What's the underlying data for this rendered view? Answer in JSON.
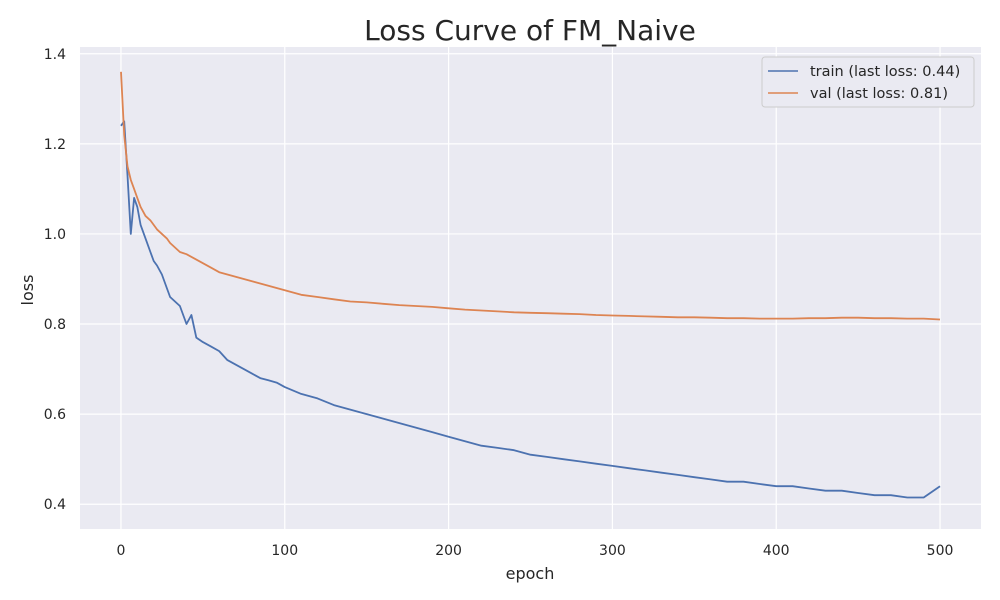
{
  "chart_data": {
    "type": "line",
    "title": "Loss Curve of FM_Naive",
    "xlabel": "epoch",
    "ylabel": "loss",
    "xlim": [
      -25,
      525
    ],
    "ylim": [
      0.345,
      1.415
    ],
    "xticks": [
      0,
      100,
      200,
      300,
      400,
      500
    ],
    "yticks": [
      0.4,
      0.6,
      0.8,
      1.0,
      1.2,
      1.4
    ],
    "xtick_labels": [
      "0",
      "100",
      "200",
      "300",
      "400",
      "500"
    ],
    "ytick_labels": [
      "0.4",
      "0.6",
      "0.8",
      "1.0",
      "1.2",
      "1.4"
    ],
    "grid": true,
    "legend_position": "top-right",
    "background": "#eaeaf2",
    "series": [
      {
        "name": "train (last loss: 0.44)",
        "color": "#4c72b0",
        "x": [
          0,
          2,
          4,
          6,
          8,
          10,
          12,
          15,
          18,
          20,
          22,
          25,
          28,
          30,
          33,
          36,
          40,
          43,
          46,
          50,
          55,
          60,
          65,
          70,
          75,
          80,
          85,
          90,
          95,
          100,
          110,
          120,
          130,
          140,
          150,
          160,
          170,
          180,
          190,
          200,
          210,
          220,
          230,
          240,
          250,
          260,
          270,
          280,
          290,
          300,
          310,
          320,
          330,
          340,
          350,
          360,
          370,
          380,
          390,
          400,
          410,
          420,
          430,
          440,
          450,
          460,
          470,
          480,
          490,
          500
        ],
        "y": [
          1.24,
          1.25,
          1.13,
          1.0,
          1.08,
          1.06,
          1.02,
          0.99,
          0.96,
          0.94,
          0.93,
          0.91,
          0.88,
          0.86,
          0.85,
          0.84,
          0.8,
          0.82,
          0.77,
          0.76,
          0.75,
          0.74,
          0.72,
          0.71,
          0.7,
          0.69,
          0.68,
          0.675,
          0.67,
          0.66,
          0.645,
          0.635,
          0.62,
          0.61,
          0.6,
          0.59,
          0.58,
          0.57,
          0.56,
          0.55,
          0.54,
          0.53,
          0.525,
          0.52,
          0.51,
          0.505,
          0.5,
          0.495,
          0.49,
          0.485,
          0.48,
          0.475,
          0.47,
          0.465,
          0.46,
          0.455,
          0.45,
          0.45,
          0.445,
          0.44,
          0.44,
          0.435,
          0.43,
          0.43,
          0.425,
          0.42,
          0.42,
          0.415,
          0.415,
          0.44
        ]
      },
      {
        "name": "val (last loss: 0.81)",
        "color": "#dd8452",
        "x": [
          0,
          2,
          4,
          6,
          8,
          10,
          12,
          15,
          18,
          20,
          22,
          25,
          28,
          30,
          33,
          36,
          40,
          45,
          50,
          55,
          60,
          65,
          70,
          75,
          80,
          85,
          90,
          95,
          100,
          110,
          120,
          130,
          140,
          150,
          160,
          170,
          180,
          190,
          200,
          210,
          220,
          230,
          240,
          250,
          260,
          270,
          280,
          290,
          300,
          310,
          320,
          330,
          340,
          350,
          360,
          370,
          380,
          390,
          400,
          410,
          420,
          430,
          440,
          450,
          460,
          470,
          480,
          490,
          500
        ],
        "y": [
          1.36,
          1.22,
          1.15,
          1.12,
          1.1,
          1.08,
          1.06,
          1.04,
          1.03,
          1.02,
          1.01,
          1.0,
          0.99,
          0.98,
          0.97,
          0.96,
          0.955,
          0.945,
          0.935,
          0.925,
          0.915,
          0.91,
          0.905,
          0.9,
          0.895,
          0.89,
          0.885,
          0.88,
          0.875,
          0.865,
          0.86,
          0.855,
          0.85,
          0.848,
          0.845,
          0.842,
          0.84,
          0.838,
          0.835,
          0.832,
          0.83,
          0.828,
          0.826,
          0.825,
          0.824,
          0.823,
          0.822,
          0.82,
          0.819,
          0.818,
          0.817,
          0.816,
          0.815,
          0.815,
          0.814,
          0.813,
          0.813,
          0.812,
          0.812,
          0.812,
          0.813,
          0.813,
          0.814,
          0.814,
          0.813,
          0.813,
          0.812,
          0.812,
          0.81
        ]
      }
    ]
  }
}
